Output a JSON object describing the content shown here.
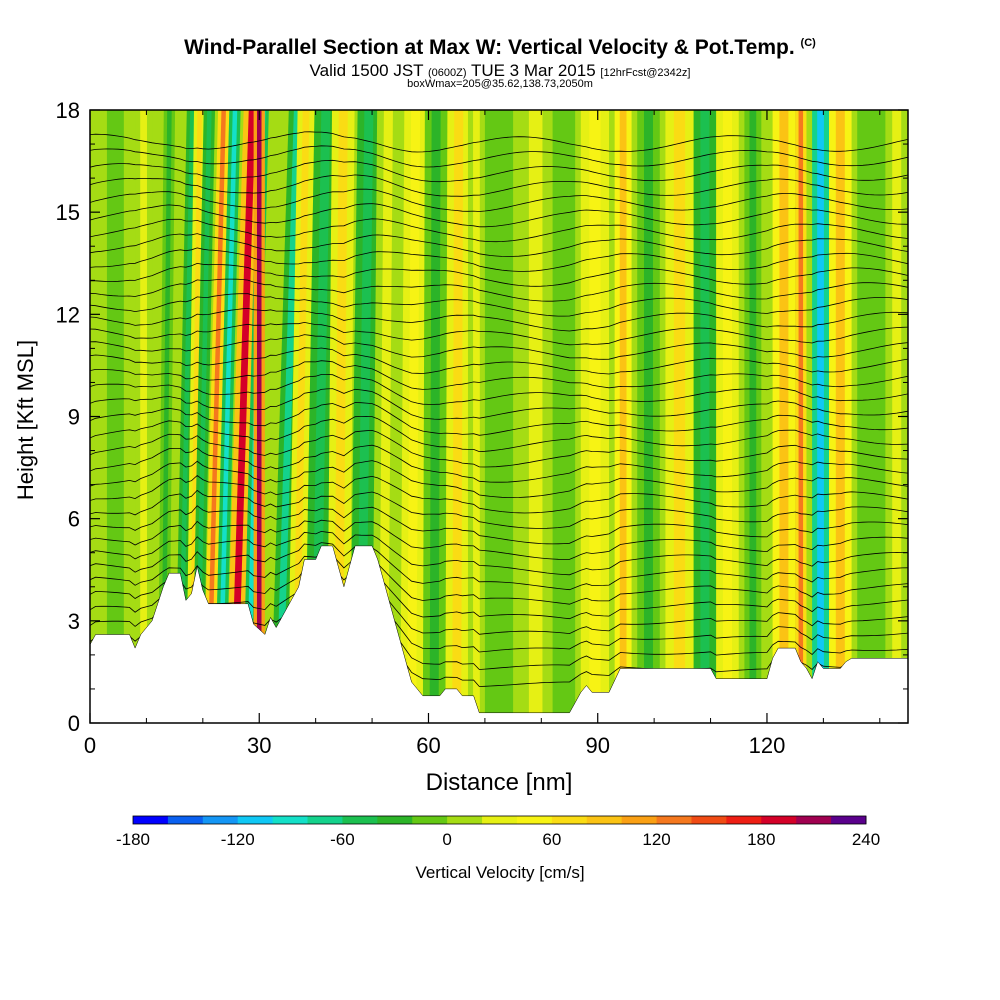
{
  "header": {
    "title": "Wind-Parallel Section at Max W: Vertical Velocity & Pot.Temp.",
    "copyright": "(C)",
    "valid_prefix": "Valid 1500 JST",
    "valid_zulu": "(0600Z)",
    "valid_date": "TUE 3 Mar 2015",
    "forecast_tag": "[12hrFcst@2342z]",
    "subtitle2": "boxWmax=205@35.62,138.73,2050m"
  },
  "chart_data": {
    "type": "heatmap",
    "title": "Wind-Parallel Section at Max W: Vertical Velocity & Pot.Temp.",
    "xlabel": "Distance [nm]",
    "ylabel": "Height [Kft MSL]",
    "xlim": [
      0,
      145
    ],
    "ylim": [
      0,
      18
    ],
    "x_ticks": [
      0,
      30,
      60,
      90,
      120
    ],
    "y_ticks": [
      0,
      3,
      6,
      9,
      12,
      15,
      18
    ],
    "terrain": [
      [
        0,
        2.3
      ],
      [
        1,
        2.6
      ],
      [
        7,
        2.6
      ],
      [
        8,
        2.2
      ],
      [
        9,
        2.6
      ],
      [
        11,
        3.0
      ],
      [
        12,
        3.5
      ],
      [
        13,
        4.0
      ],
      [
        14,
        4.4
      ],
      [
        16,
        4.4
      ],
      [
        17,
        3.6
      ],
      [
        18,
        3.8
      ],
      [
        19,
        4.6
      ],
      [
        20,
        3.9
      ],
      [
        21,
        3.5
      ],
      [
        28,
        3.5
      ],
      [
        29,
        2.9
      ],
      [
        31,
        2.6
      ],
      [
        32,
        3.1
      ],
      [
        33,
        2.8
      ],
      [
        35,
        3.4
      ],
      [
        37,
        4.0
      ],
      [
        38,
        4.8
      ],
      [
        40,
        4.8
      ],
      [
        41,
        5.2
      ],
      [
        43,
        5.2
      ],
      [
        44,
        4.6
      ],
      [
        45,
        4.0
      ],
      [
        46,
        4.6
      ],
      [
        47,
        5.2
      ],
      [
        50,
        5.2
      ],
      [
        51,
        4.8
      ],
      [
        52,
        4.2
      ],
      [
        53,
        3.6
      ],
      [
        54,
        3.0
      ],
      [
        55,
        2.4
      ],
      [
        56,
        1.8
      ],
      [
        57,
        1.2
      ],
      [
        58,
        1.0
      ],
      [
        59,
        0.8
      ],
      [
        62,
        0.8
      ],
      [
        63,
        1.0
      ],
      [
        65,
        1.0
      ],
      [
        66,
        0.8
      ],
      [
        68,
        0.8
      ],
      [
        69,
        0.3
      ],
      [
        85,
        0.3
      ],
      [
        86,
        0.6
      ],
      [
        87,
        0.9
      ],
      [
        88,
        1.1
      ],
      [
        89,
        0.9
      ],
      [
        92,
        0.9
      ],
      [
        94,
        1.6
      ],
      [
        110,
        1.6
      ],
      [
        111,
        1.3
      ],
      [
        120,
        1.3
      ],
      [
        121,
        1.9
      ],
      [
        122,
        2.2
      ],
      [
        125,
        2.2
      ],
      [
        126,
        1.8
      ],
      [
        127,
        1.6
      ],
      [
        128,
        1.3
      ],
      [
        129,
        1.8
      ],
      [
        130,
        1.6
      ],
      [
        133,
        1.6
      ],
      [
        134,
        1.8
      ],
      [
        135,
        1.9
      ],
      [
        145,
        1.9
      ]
    ],
    "vertical_velocity_bands": [
      {
        "x_start": 3,
        "x_end": 6,
        "w": -10,
        "slope": 0.0
      },
      {
        "x_start": 8,
        "x_end": 11,
        "w": 20,
        "slope": 0.0
      },
      {
        "x_start": 12,
        "x_end": 14,
        "w": -35,
        "slope": 0.06
      },
      {
        "x_start": 15,
        "x_end": 17,
        "w": -50,
        "slope": 0.12
      },
      {
        "x_start": 17,
        "x_end": 19,
        "w": 60,
        "slope": 0.08
      },
      {
        "x_start": 18,
        "x_end": 20,
        "w": -60,
        "slope": 0.12
      },
      {
        "x_start": 20,
        "x_end": 22,
        "w": 120,
        "slope": 0.15
      },
      {
        "x_start": 22,
        "x_end": 24,
        "w": -90,
        "slope": 0.15
      },
      {
        "x_start": 24,
        "x_end": 27,
        "w": 180,
        "slope": 0.18
      },
      {
        "x_start": 27,
        "x_end": 29,
        "w": -90,
        "slope": 0.15
      },
      {
        "x_start": 29,
        "x_end": 31,
        "w": 205,
        "slope": 0.0
      },
      {
        "x_start": 32,
        "x_end": 35,
        "w": -70,
        "slope": 0.18
      },
      {
        "x_start": 35,
        "x_end": 38,
        "w": 60,
        "slope": 0.1
      },
      {
        "x_start": 38,
        "x_end": 42,
        "w": -45,
        "slope": 0.1
      },
      {
        "x_start": 42,
        "x_end": 46,
        "w": 70,
        "slope": 0.05
      },
      {
        "x_start": 46,
        "x_end": 50,
        "w": -55,
        "slope": 0.08
      },
      {
        "x_start": 50,
        "x_end": 54,
        "w": 30,
        "slope": 0.05
      },
      {
        "x_start": 55,
        "x_end": 59,
        "w": 50,
        "slope": 0.04
      },
      {
        "x_start": 59,
        "x_end": 63,
        "w": -35,
        "slope": 0.02
      },
      {
        "x_start": 63,
        "x_end": 67,
        "w": 70,
        "slope": 0.02
      },
      {
        "x_start": 67,
        "x_end": 70,
        "w": 20,
        "slope": 0.0
      },
      {
        "x_start": 70,
        "x_end": 75,
        "w": -20,
        "slope": 0.0
      },
      {
        "x_start": 76,
        "x_end": 82,
        "w": 35,
        "slope": 0.0
      },
      {
        "x_start": 82,
        "x_end": 86,
        "w": -15,
        "slope": 0.0
      },
      {
        "x_start": 87,
        "x_end": 92,
        "w": 45,
        "slope": 0.0
      },
      {
        "x_start": 93,
        "x_end": 96,
        "w": 90,
        "slope": 0.0
      },
      {
        "x_start": 97,
        "x_end": 101,
        "w": -25,
        "slope": 0.0
      },
      {
        "x_start": 102,
        "x_end": 107,
        "w": 60,
        "slope": 0.0
      },
      {
        "x_start": 107,
        "x_end": 111,
        "w": -45,
        "slope": 0.0
      },
      {
        "x_start": 111,
        "x_end": 115,
        "w": 50,
        "slope": 0.0
      },
      {
        "x_start": 116,
        "x_end": 119,
        "w": -25,
        "slope": 0.0
      },
      {
        "x_start": 121,
        "x_end": 125,
        "w": 80,
        "slope": 0.0
      },
      {
        "x_start": 125,
        "x_end": 127,
        "w": 130,
        "slope": 0.0
      },
      {
        "x_start": 128,
        "x_end": 131,
        "w": -110,
        "slope": 0.0
      },
      {
        "x_start": 131,
        "x_end": 135,
        "w": 90,
        "slope": 0.0
      },
      {
        "x_start": 136,
        "x_end": 141,
        "w": -20,
        "slope": 0.0
      },
      {
        "x_start": 141,
        "x_end": 145,
        "w": 30,
        "slope": 0.0
      }
    ],
    "theta_contours": {
      "count": 36,
      "start_height": 2.0,
      "spacing": 0.43
    },
    "colorbar": {
      "label": "Vertical Velocity [cm/s]",
      "min": -180,
      "max": 240,
      "step": 20,
      "tick_values": [
        -180,
        -120,
        -60,
        0,
        60,
        120,
        180,
        240
      ],
      "tick_labels": [
        "-180",
        "-120",
        "-60",
        "0",
        "60",
        "120",
        "180",
        "240"
      ],
      "colors": [
        "#0000ff",
        "#0a60f0",
        "#1496f5",
        "#10c8f5",
        "#14e0c8",
        "#14d28c",
        "#1cc050",
        "#2cb428",
        "#64c814",
        "#a5dc14",
        "#e6f014",
        "#f7f314",
        "#fadc14",
        "#fbc314",
        "#faa014",
        "#f5781e",
        "#f04b14",
        "#ee1e14",
        "#d40028",
        "#a00050",
        "#5a008c"
      ]
    }
  }
}
